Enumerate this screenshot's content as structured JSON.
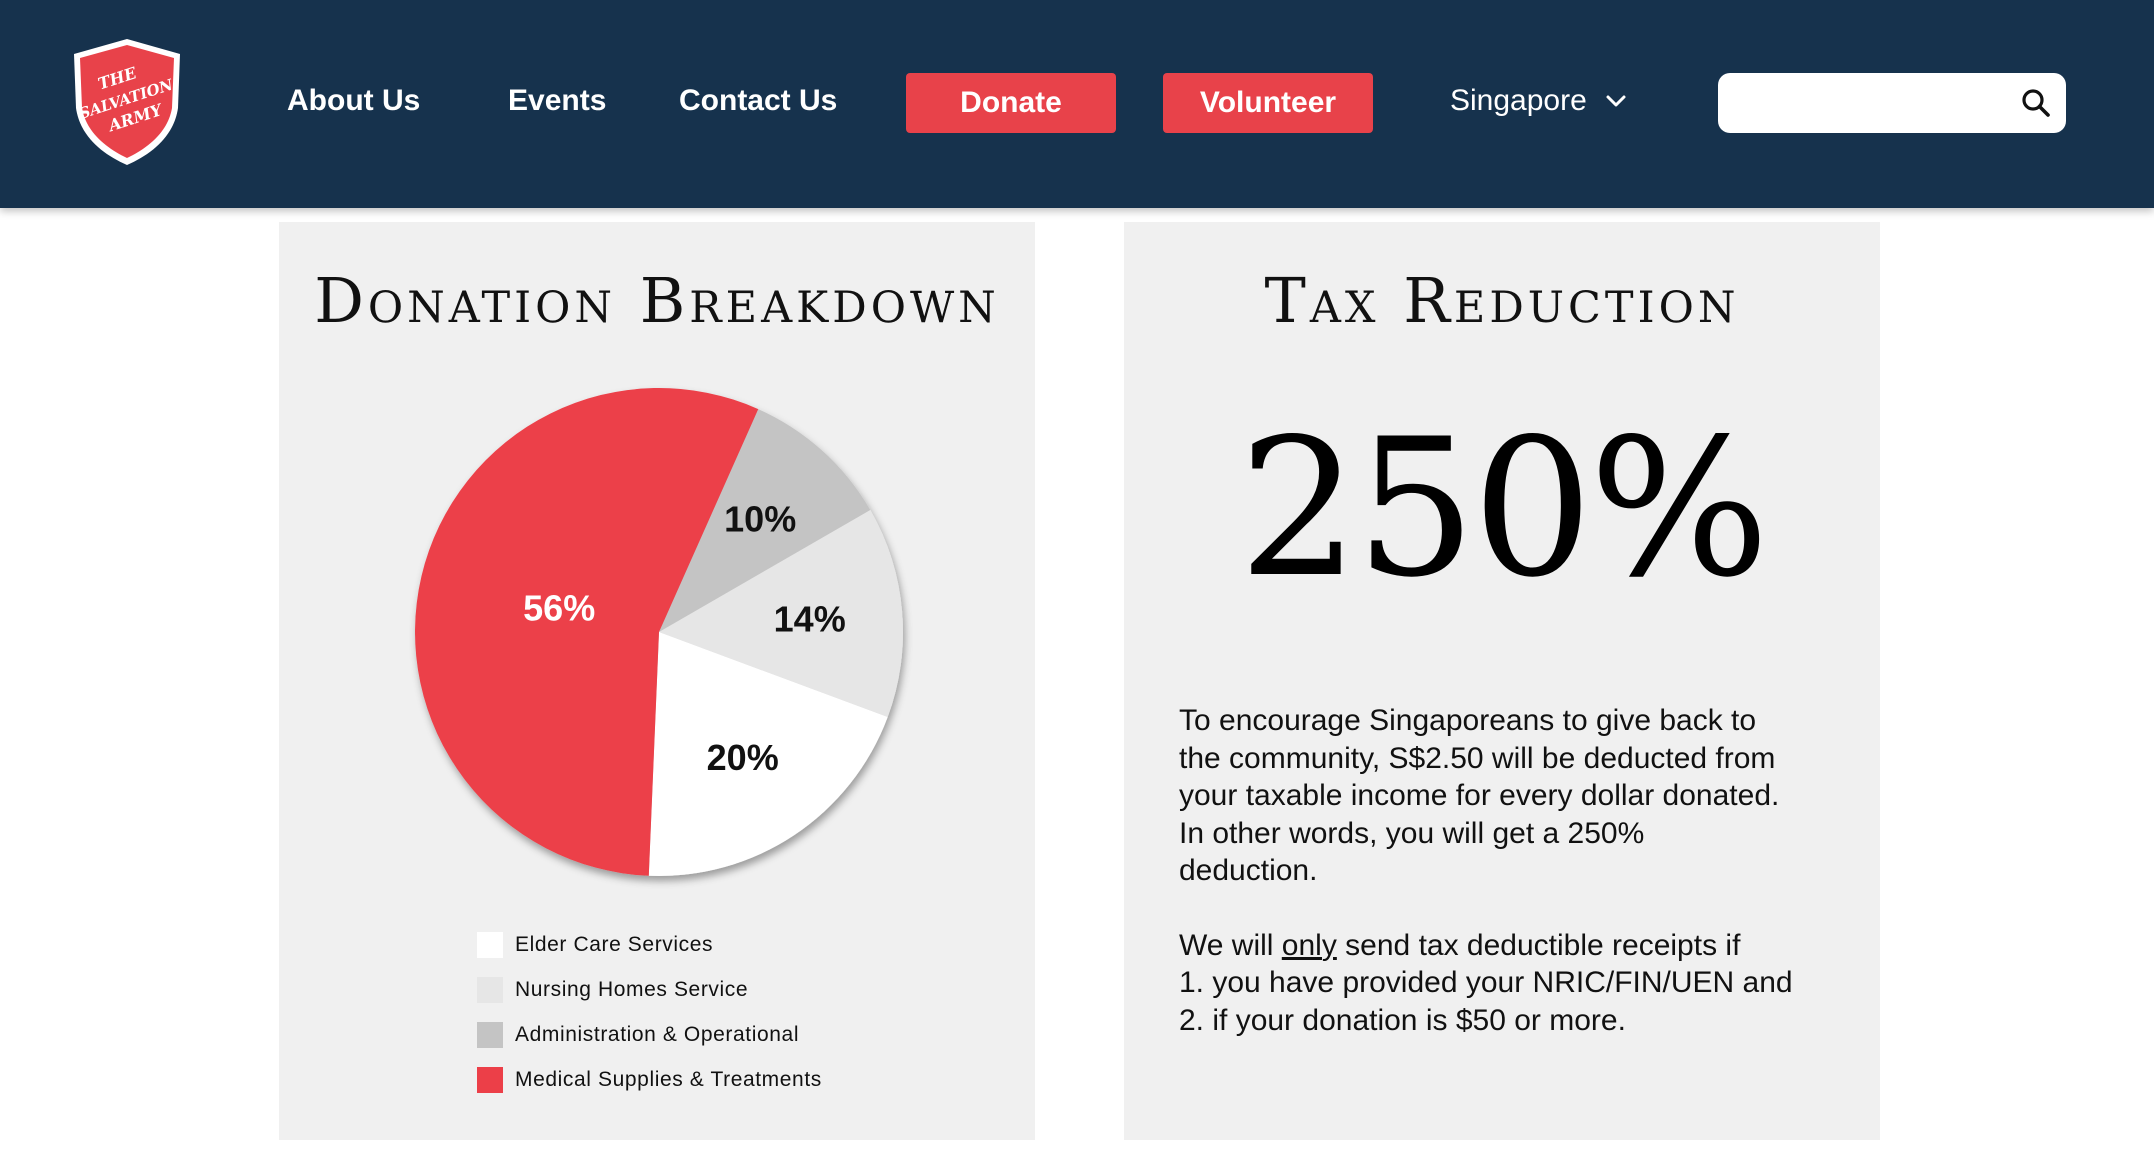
{
  "header": {
    "logo_text": [
      "THE",
      "SALVATION",
      "ARMY"
    ],
    "nav": {
      "about": "About Us",
      "events": "Events",
      "contact": "Contact Us"
    },
    "donate_label": "Donate",
    "volunteer_label": "Volunteer",
    "region": "Singapore",
    "search_placeholder": ""
  },
  "donation": {
    "title": "Donation Breakdown",
    "legend": [
      {
        "label": "Elder Care Services",
        "color": "#ffffff"
      },
      {
        "label": "Nursing Homes Service",
        "color": "#e6e6e6"
      },
      {
        "label": "Administration & Operational",
        "color": "#c4c4c4"
      },
      {
        "label": "Medical Supplies & Treatments",
        "color": "#ec3f48"
      }
    ]
  },
  "chart_data": {
    "type": "pie",
    "title": "Donation Breakdown",
    "categories": [
      "Administration & Operational",
      "Nursing Homes Service",
      "Elder Care Services",
      "Medical Supplies & Treatments"
    ],
    "values": [
      10,
      14,
      20,
      56
    ],
    "labels": [
      "10%",
      "14%",
      "20%",
      "56%"
    ],
    "colors": [
      "#c4c4c4",
      "#e6e6e6",
      "#ffffff",
      "#ec3f48"
    ],
    "label_colors": [
      "#111111",
      "#111111",
      "#111111",
      "#ffffff"
    ],
    "legend_position": "bottom"
  },
  "tax": {
    "title": "Tax Reduction",
    "big_number": "250%",
    "para1_lines": [
      "To encourage Singaporeans to give back to",
      "the community, S$2.50 will be deducted from",
      "your taxable income for every dollar donated.",
      "In other words, you will get a 250%",
      "deduction."
    ],
    "para2_prefix": "We will ",
    "para2_emph": "only",
    "para2_suffix": " send tax deductible receipts if",
    "para2_lines": [
      "1. you have provided your NRIC/FIN/UEN and",
      "2. if your donation is $50 or more."
    ]
  },
  "colors": {
    "header_bg": "#16324d",
    "accent_red": "#e8424a",
    "card_bg": "#f0f0f0"
  }
}
